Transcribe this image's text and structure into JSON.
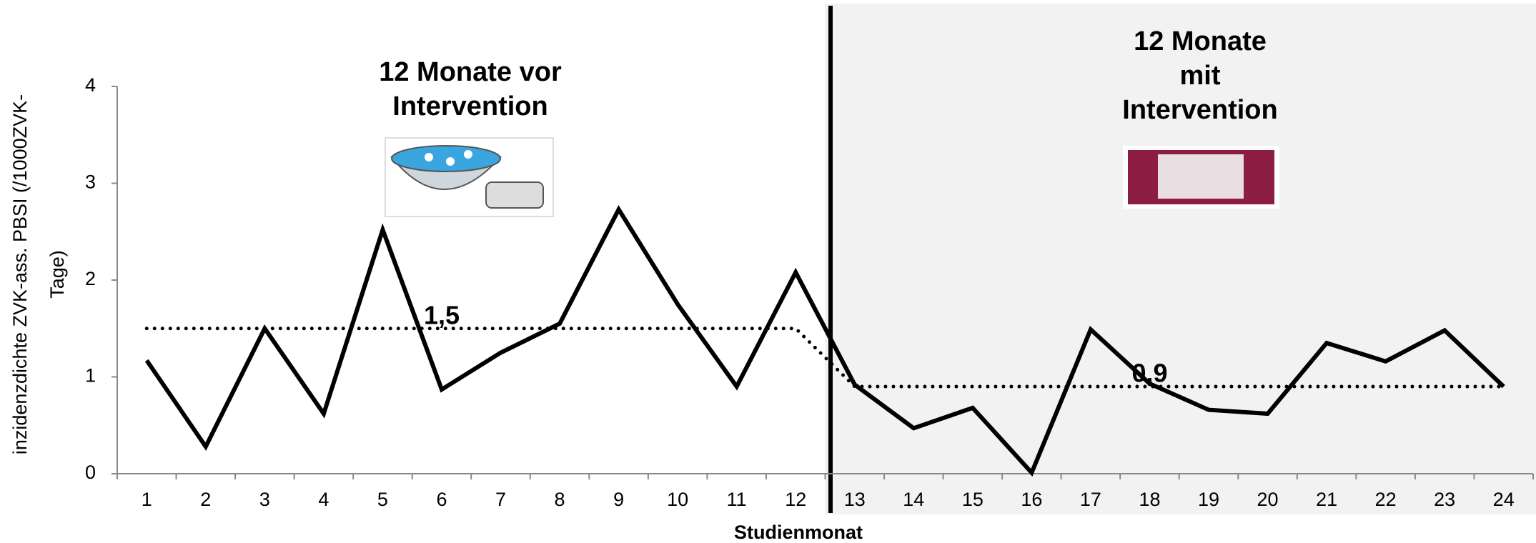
{
  "chart_data": {
    "type": "line",
    "phases": [
      {
        "title_lines": [
          "12 Monate vor",
          "Intervention"
        ]
      },
      {
        "title_lines": [
          "12 Monate",
          "mit",
          "Intervention"
        ]
      }
    ],
    "y_label_lines": [
      "inzidenzdichte ZVK-ass. PBSI (/1000ZVK-",
      "Tage)"
    ],
    "x_label": "Studienmonat",
    "categories": [
      "1",
      "2",
      "3",
      "4",
      "5",
      "6",
      "7",
      "8",
      "9",
      "10",
      "11",
      "12",
      "13",
      "14",
      "15",
      "16",
      "17",
      "18",
      "19",
      "20",
      "21",
      "22",
      "23",
      "24"
    ],
    "series": [
      {
        "color": "#000000",
        "dash": "solid",
        "values": [
          1.17,
          0.28,
          1.5,
          0.62,
          2.52,
          0.87,
          1.25,
          1.55,
          2.73,
          1.75,
          0.9,
          2.08,
          0.92,
          0.47,
          0.68,
          0.01,
          1.49,
          0.93,
          0.66,
          0.62,
          1.35,
          1.16,
          1.48,
          0.9
        ]
      },
      {
        "color": "#000000",
        "dash": "dotted",
        "values": [
          1.5,
          1.5,
          1.5,
          1.5,
          1.5,
          1.5,
          1.5,
          1.5,
          1.5,
          1.5,
          1.5,
          1.5,
          0.9,
          0.9,
          0.9,
          0.9,
          0.9,
          0.9,
          0.9,
          0.9,
          0.9,
          0.9,
          0.9,
          0.9
        ]
      }
    ],
    "annotations": [
      "1,5",
      "0,9"
    ],
    "ylim": [
      0,
      4
    ],
    "yticks": [
      0,
      1,
      2,
      3,
      4
    ]
  }
}
